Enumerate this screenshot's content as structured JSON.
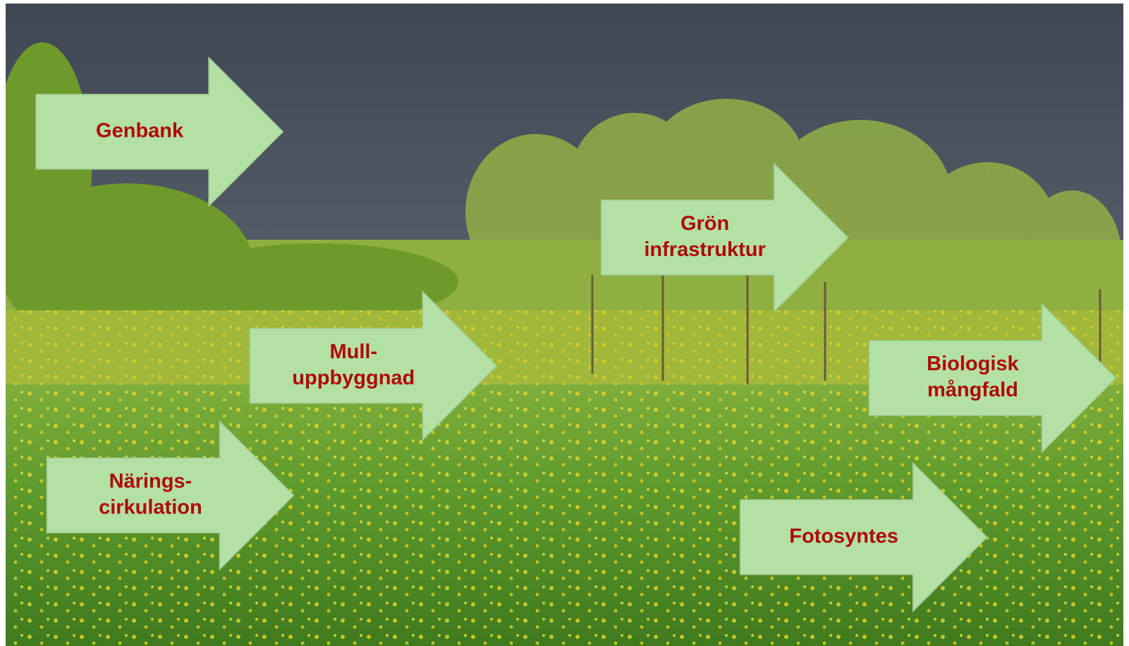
{
  "arrows": [
    {
      "lines": [
        "Genbank"
      ]
    },
    {
      "lines": [
        "Grön",
        "infrastruktur"
      ]
    },
    {
      "lines": [
        "Mull-",
        "uppbyggnad"
      ]
    },
    {
      "lines": [
        "Biologisk",
        "mångfald"
      ]
    },
    {
      "lines": [
        "Närings-",
        "cirkulation"
      ]
    },
    {
      "lines": [
        "Fotosyntes"
      ]
    }
  ]
}
